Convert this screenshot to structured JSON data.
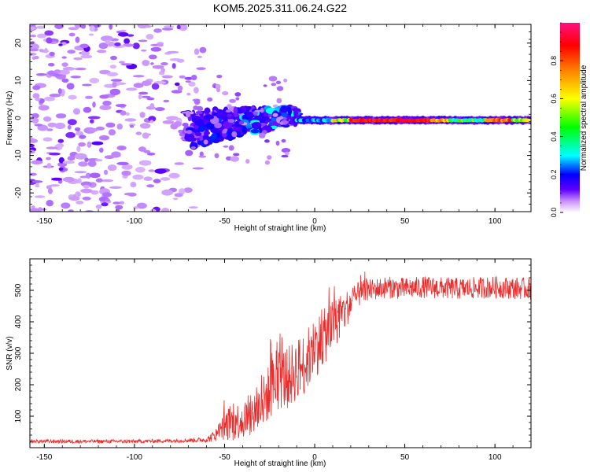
{
  "title": "KOM5.2025.311.06.24.G22",
  "chart_data": [
    {
      "type": "heatmap",
      "title": "KOM5.2025.311.06.24.G22",
      "xlabel": "Height of straight line (km)",
      "ylabel": "Frequency (Hz)",
      "xlim": [
        -158,
        120
      ],
      "ylim": [
        -25,
        25
      ],
      "x_ticks": [
        -150,
        -100,
        -50,
        0,
        50,
        100
      ],
      "x_tick_labels": [
        "-150",
        "-100",
        "-50",
        "0",
        "50",
        "100"
      ],
      "y_ticks": [
        -20,
        -10,
        0,
        10,
        20
      ],
      "y_tick_labels": [
        "-20",
        "-10",
        "0",
        "10",
        "20"
      ],
      "colorbar": {
        "label": "Normalized spectral amplitude",
        "range": [
          0,
          1
        ],
        "ticks": [
          0.0,
          0.2,
          0.4,
          0.6,
          0.8
        ],
        "tick_labels": [
          "0.0",
          "0.2",
          "0.4",
          "0.6",
          "0.8"
        ],
        "colormap": [
          "#ffffff",
          "#c890ff",
          "#6000ff",
          "#0000ff",
          "#00ffff",
          "#00ff00",
          "#ffff00",
          "#ff8000",
          "#ff0000",
          "#ff1080"
        ]
      },
      "features": [
        {
          "name": "scattered noise",
          "x_range": [
            -158,
            -70
          ],
          "f_range": [
            -25,
            25
          ],
          "amplitude": 0.08
        },
        {
          "name": "transition",
          "x_range": [
            -70,
            -10
          ],
          "f_range": [
            -8,
            5
          ],
          "amplitude": 0.2
        },
        {
          "name": "steady line",
          "x_range": [
            -10,
            120
          ],
          "f_range": [
            -1.5,
            0.5
          ],
          "amplitude": 0.9
        }
      ]
    },
    {
      "type": "line",
      "xlabel": "Height of straight line (km)",
      "ylabel": "SNR (v/v)",
      "xlim": [
        -158,
        120
      ],
      "ylim": [
        0,
        600
      ],
      "x_ticks": [
        -150,
        -100,
        -50,
        0,
        50,
        100
      ],
      "x_tick_labels": [
        "-150",
        "-100",
        "-50",
        "0",
        "50",
        "100"
      ],
      "y_ticks": [
        100,
        200,
        300,
        400,
        500
      ],
      "y_tick_labels": [
        "100",
        "200",
        "300",
        "400",
        "500"
      ],
      "line_color": "#ee2a2a",
      "series": [
        {
          "name": "SNR",
          "x": [
            -158,
            -140,
            -120,
            -100,
            -80,
            -60,
            -55,
            -50,
            -45,
            -40,
            -35,
            -30,
            -25,
            -20,
            -15,
            -10,
            -5,
            0,
            5,
            10,
            15,
            20,
            25,
            30,
            40,
            50,
            60,
            80,
            100,
            120
          ],
          "values": [
            20,
            20,
            20,
            20,
            22,
            25,
            40,
            70,
            80,
            90,
            100,
            130,
            180,
            220,
            220,
            250,
            270,
            320,
            350,
            390,
            420,
            460,
            490,
            500,
            510,
            505,
            510,
            505,
            510,
            505
          ],
          "noise_amplitude": [
            6,
            6,
            6,
            6,
            6,
            8,
            20,
            50,
            60,
            60,
            70,
            80,
            90,
            100,
            100,
            100,
            100,
            100,
            90,
            80,
            70,
            50,
            40,
            35,
            35,
            35,
            35,
            35,
            35,
            35
          ]
        }
      ]
    }
  ]
}
